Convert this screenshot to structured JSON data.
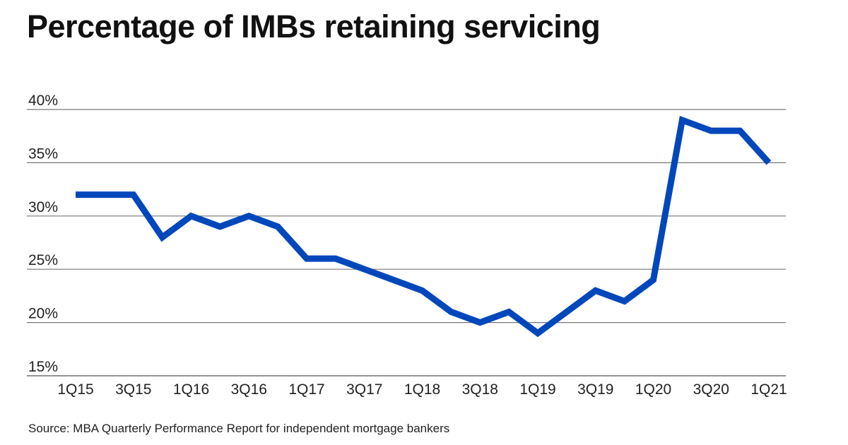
{
  "chart_data": {
    "type": "line",
    "title": "Percentage of IMBs retaining servicing",
    "source": "Source: MBA Quarterly Performance Report for independent mortgage bankers",
    "xlabel": "",
    "ylabel": "",
    "ylim": [
      15,
      40
    ],
    "yticks": [
      15,
      20,
      25,
      30,
      35,
      40
    ],
    "ytick_labels": [
      "15%",
      "20%",
      "25%",
      "30%",
      "35%",
      "40%"
    ],
    "grid": true,
    "x": [
      "1Q15",
      "2Q15",
      "3Q15",
      "4Q15",
      "1Q16",
      "2Q16",
      "3Q16",
      "4Q16",
      "1Q17",
      "2Q17",
      "3Q17",
      "4Q17",
      "1Q18",
      "2Q18",
      "3Q18",
      "4Q18",
      "1Q19",
      "2Q19",
      "3Q19",
      "4Q19",
      "1Q20",
      "2Q20",
      "3Q20",
      "4Q20",
      "1Q21"
    ],
    "xtick_labels": [
      "1Q15",
      "3Q15",
      "1Q16",
      "3Q16",
      "1Q17",
      "3Q17",
      "1Q18",
      "3Q18",
      "1Q19",
      "3Q19",
      "1Q20",
      "3Q20",
      "1Q21"
    ],
    "series": [
      {
        "name": "IMBs retaining servicing",
        "color": "#0047BB",
        "values": [
          32,
          32,
          32,
          28,
          30,
          29,
          30,
          29,
          26,
          26,
          25,
          24,
          23,
          21,
          20,
          21,
          19,
          21,
          23,
          22,
          24,
          39,
          38,
          38,
          35
        ]
      }
    ]
  }
}
